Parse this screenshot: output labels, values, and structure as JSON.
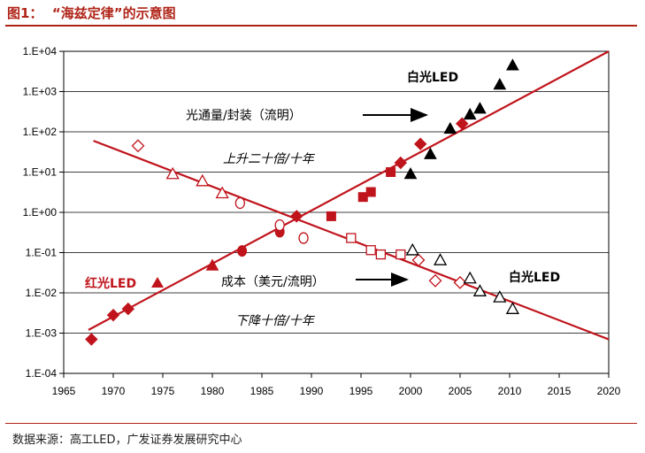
{
  "figure": {
    "title": "图1：  “海兹定律”的示意图",
    "source": "数据来源：高工LED，广发证券发展研究中心"
  },
  "colors": {
    "red": "#c0141c",
    "black": "#000000",
    "title_red": "#b02418"
  },
  "chart_data": {
    "type": "scatter",
    "x_range": [
      1965,
      2020
    ],
    "x_ticks": [
      1965,
      1970,
      1975,
      1980,
      1985,
      1990,
      1995,
      2000,
      2005,
      2010,
      2015,
      2020
    ],
    "y_scale": "log",
    "y_range": [
      0.0001,
      10000
    ],
    "y_ticks": [
      {
        "value": 10000,
        "label": "1.E+04"
      },
      {
        "value": 1000,
        "label": "1.E+03"
      },
      {
        "value": 100,
        "label": "1.E+02"
      },
      {
        "value": 10,
        "label": "1.E+01"
      },
      {
        "value": 1,
        "label": "1.E+00"
      },
      {
        "value": 0.1,
        "label": "1.E-01"
      },
      {
        "value": 0.01,
        "label": "1.E-02"
      },
      {
        "value": 0.001,
        "label": "1.E-03"
      },
      {
        "value": 0.0001,
        "label": "1.E-04"
      }
    ],
    "grid": "horizontal",
    "trend_lines": [
      {
        "id": "lumen",
        "color": "#c0141c",
        "points": [
          [
            1967.5,
            0.0012
          ],
          [
            2020,
            10000
          ]
        ]
      },
      {
        "id": "cost",
        "color": "#c0141c",
        "points": [
          [
            1968,
            60
          ],
          [
            2020,
            0.0007
          ]
        ]
      }
    ],
    "series": [
      {
        "id": "red-diamond-filled",
        "color": "#c0141c",
        "marker": "diamond",
        "filled": true,
        "points": [
          [
            1967.8,
            0.0007
          ],
          [
            1970,
            0.0028
          ],
          [
            1971.5,
            0.004
          ],
          [
            1988.5,
            0.8
          ],
          [
            1999,
            17
          ],
          [
            2001,
            50
          ],
          [
            2005.2,
            160
          ]
        ]
      },
      {
        "id": "red-triangle-filled",
        "color": "#c0141c",
        "marker": "triangle",
        "filled": true,
        "points": [
          [
            1980,
            0.048
          ]
        ]
      },
      {
        "id": "red-circle-filled",
        "color": "#c0141c",
        "marker": "circle",
        "filled": true,
        "points": [
          [
            1983,
            0.11
          ],
          [
            1986.8,
            0.33
          ]
        ]
      },
      {
        "id": "red-square-filled",
        "color": "#c0141c",
        "marker": "square",
        "filled": true,
        "points": [
          [
            1992,
            0.8
          ],
          [
            1995.2,
            2.4
          ],
          [
            1996,
            3.2
          ],
          [
            1998,
            10
          ]
        ]
      },
      {
        "id": "black-triangle-filled",
        "color": "#000000",
        "marker": "triangle",
        "filled": true,
        "points": [
          [
            2000,
            9
          ],
          [
            2002,
            28
          ],
          [
            2004,
            120
          ],
          [
            2006,
            270
          ],
          [
            2007,
            380
          ],
          [
            2009,
            1500
          ],
          [
            2010.3,
            4500
          ]
        ]
      },
      {
        "id": "red-diamond-open",
        "color": "#c0141c",
        "marker": "diamond",
        "filled": false,
        "points": [
          [
            1972.5,
            45
          ],
          [
            2000.8,
            0.065
          ],
          [
            2002.5,
            0.02
          ],
          [
            2005,
            0.018
          ]
        ]
      },
      {
        "id": "red-triangle-open",
        "color": "#c0141c",
        "marker": "triangle",
        "filled": false,
        "points": [
          [
            1976,
            9
          ],
          [
            1979,
            6
          ],
          [
            1981,
            3
          ]
        ]
      },
      {
        "id": "red-circle-open",
        "color": "#c0141c",
        "marker": "circle",
        "filled": false,
        "points": [
          [
            1982.8,
            1.7
          ],
          [
            1986.8,
            0.48
          ],
          [
            1989.2,
            0.23
          ]
        ]
      },
      {
        "id": "red-square-open",
        "color": "#c0141c",
        "marker": "square",
        "filled": false,
        "points": [
          [
            1994,
            0.23
          ],
          [
            1996,
            0.115
          ],
          [
            1997,
            0.09
          ],
          [
            1999,
            0.09
          ]
        ]
      },
      {
        "id": "black-triangle-open",
        "color": "#000000",
        "marker": "triangle",
        "filled": false,
        "points": [
          [
            2000.2,
            0.115
          ],
          [
            2003,
            0.065
          ],
          [
            2006,
            0.023
          ],
          [
            2007,
            0.011
          ],
          [
            2009,
            0.0078
          ],
          [
            2010.3,
            0.004
          ]
        ]
      }
    ],
    "annotations": [
      {
        "id": "white-led-top",
        "text": "白光LED",
        "style": "bold"
      },
      {
        "id": "lumen-package",
        "text": "光通量/封装（流明）",
        "style": "normal"
      },
      {
        "id": "rise-rate",
        "text": "上升二十倍/十年",
        "style": "italic"
      },
      {
        "id": "red-led",
        "text": "红光LED",
        "style": "red"
      },
      {
        "id": "cost",
        "text": "成本（美元/流明）",
        "style": "normal"
      },
      {
        "id": "white-led-bottom",
        "text": "白光LED",
        "style": "bold"
      },
      {
        "id": "fall-rate",
        "text": "下降十倍/十年",
        "style": "italic"
      }
    ]
  }
}
